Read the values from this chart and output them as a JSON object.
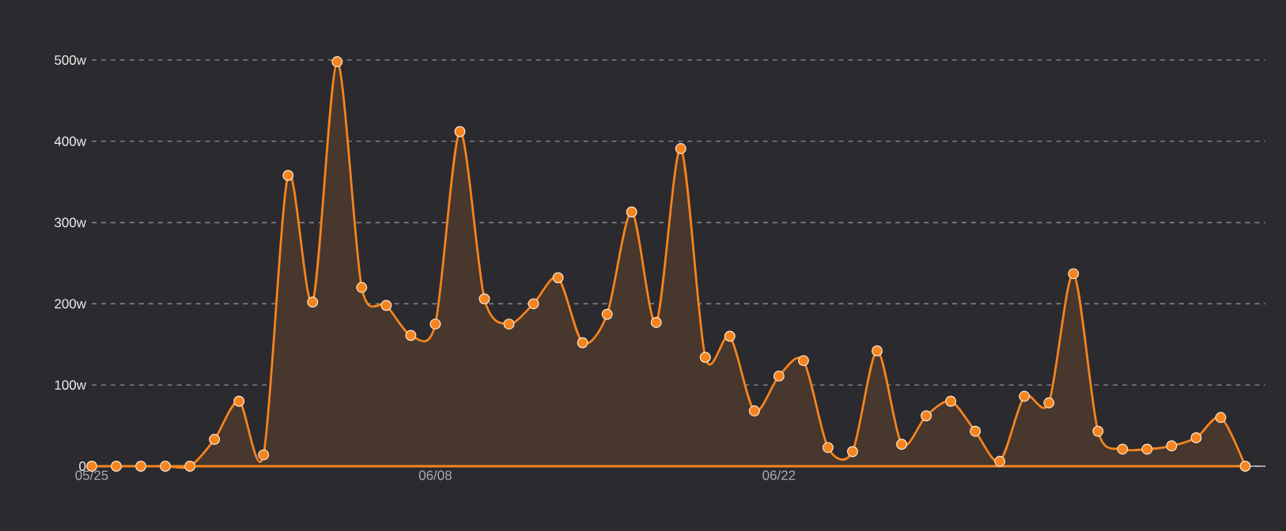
{
  "chart_data": {
    "type": "area",
    "categories": [
      "05/25",
      null,
      null,
      null,
      null,
      null,
      null,
      null,
      null,
      null,
      null,
      null,
      null,
      null,
      "06/08",
      null,
      null,
      null,
      null,
      null,
      null,
      null,
      null,
      null,
      null,
      null,
      null,
      null,
      "06/22",
      null,
      null,
      null,
      null,
      null,
      null,
      null,
      null,
      null,
      null,
      null,
      null,
      null,
      null,
      null,
      null,
      null,
      null,
      null
    ],
    "values": [
      0,
      0,
      0,
      0,
      0,
      33,
      80,
      14,
      358,
      202,
      498,
      220,
      198,
      161,
      175,
      412,
      206,
      175,
      200,
      232,
      152,
      187,
      313,
      177,
      391,
      134,
      160,
      68,
      111,
      130,
      23,
      18,
      142,
      27,
      62,
      80,
      43,
      6,
      86,
      78,
      237,
      43,
      21,
      21,
      25,
      35,
      60,
      0
    ],
    "color": "#f5841f",
    "ylim": [
      0,
      500
    ],
    "yticks": [
      0,
      {
        "value": 100,
        "label": "100w"
      },
      {
        "value": 200,
        "label": "200w"
      },
      {
        "value": 300,
        "label": "300w"
      },
      {
        "value": 400,
        "label": "400w"
      },
      {
        "value": 500,
        "label": "500w"
      }
    ],
    "grid": "y",
    "marker": "circle",
    "line_style": "solid"
  }
}
